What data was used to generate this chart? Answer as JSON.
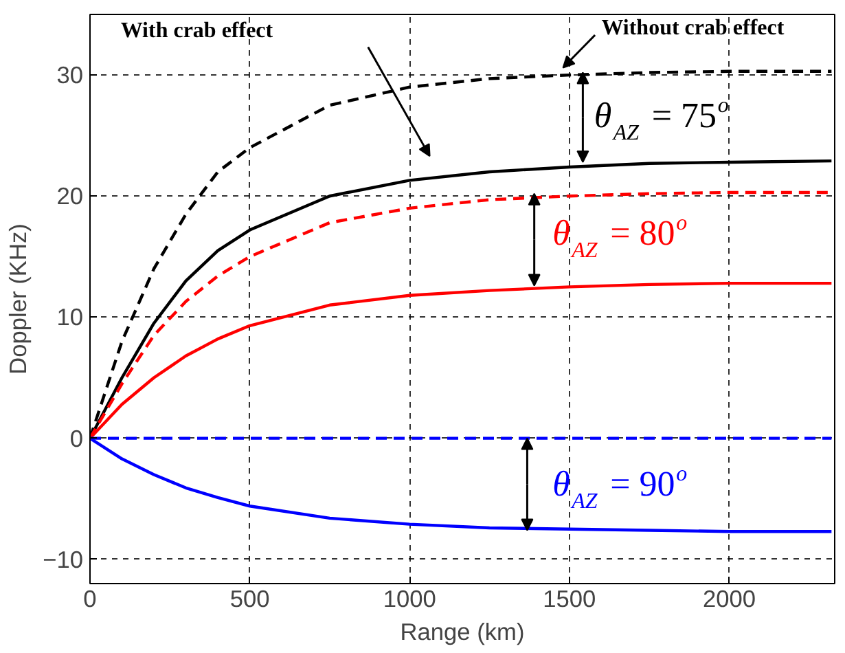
{
  "chart_data": {
    "type": "line",
    "xlabel": "Range (km)",
    "ylabel": "Doppler (KHz)",
    "x": [
      0,
      100,
      200,
      300,
      400,
      500,
      750,
      1000,
      1250,
      1500,
      1750,
      2000,
      2320
    ],
    "xlim": [
      0,
      2330
    ],
    "ylim": [
      -12,
      35
    ],
    "xticks": [
      0,
      500,
      1000,
      1500,
      2000
    ],
    "yticks": [
      -10,
      0,
      10,
      20,
      30
    ],
    "grid": true,
    "series": [
      {
        "color": "#000000",
        "line_style": "dashed",
        "values": [
          0,
          8,
          14,
          18.5,
          22,
          24,
          27.5,
          29,
          29.7,
          30,
          30.2,
          30.3,
          30.3
        ]
      },
      {
        "color": "#000000",
        "line_style": "solid",
        "values": [
          0,
          5,
          9.5,
          13,
          15.5,
          17.2,
          20,
          21.3,
          22,
          22.4,
          22.7,
          22.8,
          22.9
        ]
      },
      {
        "color": "#ff0000",
        "line_style": "dashed",
        "values": [
          0,
          4.5,
          8.5,
          11.3,
          13.4,
          15,
          17.8,
          19,
          19.7,
          20,
          20.2,
          20.3,
          20.3
        ]
      },
      {
        "color": "#ff0000",
        "line_style": "solid",
        "values": [
          0,
          2.8,
          5,
          6.8,
          8.2,
          9.3,
          11,
          11.8,
          12.2,
          12.5,
          12.7,
          12.8,
          12.8
        ]
      },
      {
        "color": "#0000ff",
        "line_style": "dashed",
        "values": [
          0,
          0,
          0,
          0,
          0,
          0,
          0,
          0,
          0,
          0,
          0,
          0,
          0
        ]
      },
      {
        "color": "#0000ff",
        "line_style": "solid",
        "values": [
          0,
          -1.7,
          -3,
          -4.1,
          -4.9,
          -5.6,
          -6.6,
          -7.1,
          -7.4,
          -7.5,
          -7.6,
          -7.7,
          -7.7
        ]
      }
    ],
    "annotations": [
      "With crab effect",
      "Without crab effect",
      "θ$_{AZ}$ = 75$^{o}$",
      "θ$_{AZ}$ = 80$^{o}$",
      "θ$_{AZ}$ = 90$^{o}$"
    ]
  }
}
